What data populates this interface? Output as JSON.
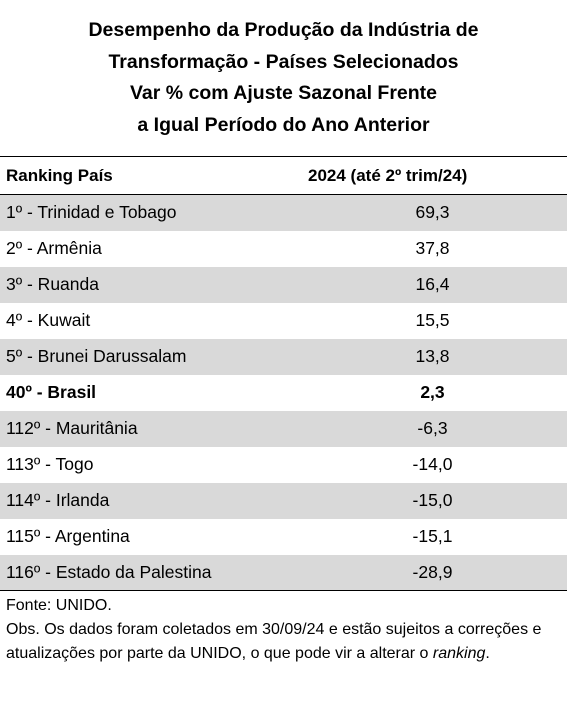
{
  "title": {
    "lines": [
      "Desempenho da Produção da Indústria de",
      "Transformação - Países Selecionados",
      "Var % com Ajuste Sazonal Frente",
      "a Igual Período do Ano Anterior"
    ]
  },
  "table": {
    "headers": [
      "Ranking País",
      "2024 (até 2º trim/24)"
    ],
    "rows": [
      {
        "rank": "1º - Trinidad e Tobago",
        "value": "69,3"
      },
      {
        "rank": "2º - Armênia",
        "value": "37,8"
      },
      {
        "rank": "3º - Ruanda",
        "value": "16,4"
      },
      {
        "rank": "4º - Kuwait",
        "value": "15,5"
      },
      {
        "rank": "5º - Brunei Darussalam",
        "value": "13,8"
      },
      {
        "rank": "40º - Brasil",
        "value": "2,3"
      },
      {
        "rank": "112º - Mauritânia",
        "value": "-6,3"
      },
      {
        "rank": "113º - Togo",
        "value": "-14,0"
      },
      {
        "rank": "114º - Irlanda",
        "value": "-15,0"
      },
      {
        "rank": "115º - Argentina",
        "value": "-15,1"
      },
      {
        "rank": "116º - Estado da Palestina",
        "value": "-28,9"
      }
    ]
  },
  "notes": {
    "source": "Fonte: UNIDO.",
    "obs_text": "Obs. Os dados foram coletados em 30/09/24 e estão sujeitos a correções e atualizações por parte da UNIDO, o que pode vir a alterar o",
    "obs_italic": "ranking",
    "obs_end": "."
  },
  "colors": {
    "shade": "#d9d9d9",
    "text": "#000000"
  }
}
